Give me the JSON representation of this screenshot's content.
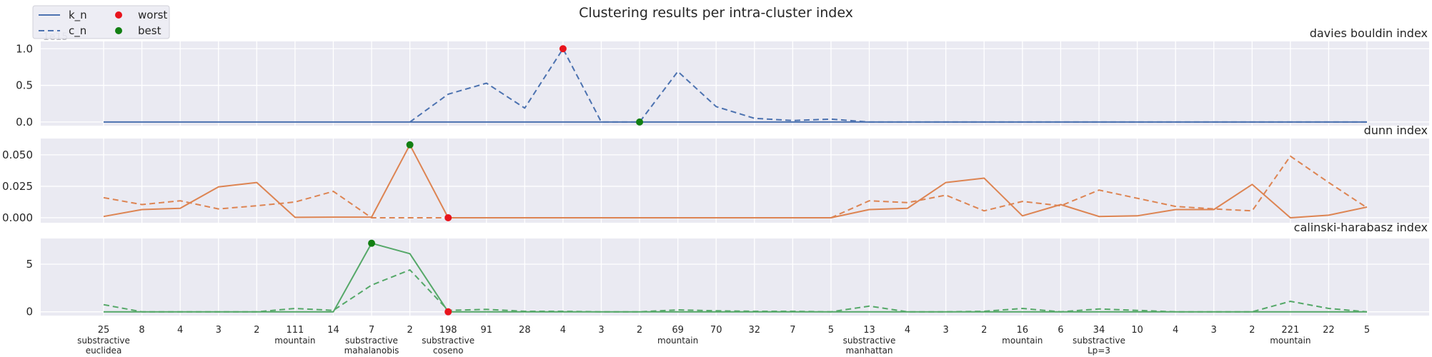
{
  "figure": {
    "title": "Clustering results per intra-cluster index",
    "legend": {
      "placement": "top-left",
      "entries": [
        {
          "key": "k_n",
          "label": "k_n",
          "kind": "solid-line"
        },
        {
          "key": "c_n",
          "label": "c_n",
          "kind": "dashed-line"
        },
        {
          "key": "worst",
          "label": "worst",
          "kind": "marker",
          "color": "#e8141c"
        },
        {
          "key": "best",
          "label": "best",
          "kind": "marker",
          "color": "#127f12"
        }
      ]
    }
  },
  "colors": {
    "background": "#eaeaf2",
    "grid": "#ffffff",
    "worst": "#e8141c",
    "best": "#127f12"
  },
  "chart_data": [
    {
      "type": "line",
      "title": "davies bouldin index",
      "offset_text": "1e15",
      "color": "#4c72b0",
      "ylim": [
        -0.05,
        1.1
      ],
      "yticks": [
        0.0,
        0.5,
        1.0
      ],
      "ytick_labels": [
        "0.0",
        "0.5",
        "1.0"
      ],
      "grid": true,
      "x": [
        0,
        1,
        2,
        3,
        4,
        5,
        6,
        7,
        8,
        9,
        10,
        11,
        12,
        13,
        14,
        15,
        16,
        17,
        18,
        19,
        20,
        21,
        22,
        23,
        24,
        25,
        26,
        27,
        28,
        29,
        30,
        31,
        32,
        33
      ],
      "series": [
        {
          "name": "k_n",
          "style": "solid",
          "values": [
            0,
            0,
            0,
            0,
            0,
            0,
            0,
            0,
            0,
            0,
            0,
            0,
            0,
            0,
            0,
            0,
            0,
            0,
            0,
            0,
            0,
            0,
            0,
            0,
            0,
            0,
            0,
            0,
            0,
            0,
            0,
            0,
            0,
            0
          ]
        },
        {
          "name": "c_n",
          "style": "dashed",
          "values": [
            null,
            null,
            null,
            null,
            null,
            null,
            null,
            null,
            0,
            0.38,
            0.53,
            0.19,
            1.0,
            0,
            0,
            0.69,
            0.21,
            0.05,
            0.02,
            0.04,
            0,
            0,
            0,
            0,
            0,
            0,
            0,
            0,
            0,
            0,
            0,
            0,
            0,
            0
          ]
        }
      ],
      "worst": {
        "x": 12,
        "y": 1.0
      },
      "best": {
        "x": 14,
        "y": 0.0
      }
    },
    {
      "type": "line",
      "title": "dunn index",
      "color": "#dd8452",
      "ylim": [
        -0.004,
        0.063
      ],
      "yticks": [
        0.0,
        0.025,
        0.05
      ],
      "ytick_labels": [
        "0.000",
        "0.025",
        "0.050"
      ],
      "grid": true,
      "x": [
        0,
        1,
        2,
        3,
        4,
        5,
        6,
        7,
        8,
        9,
        10,
        11,
        12,
        13,
        14,
        15,
        16,
        17,
        18,
        19,
        20,
        21,
        22,
        23,
        24,
        25,
        26,
        27,
        28,
        29,
        30,
        31,
        32,
        33
      ],
      "series": [
        {
          "name": "k_n",
          "style": "solid",
          "values": [
            0.001,
            0.0065,
            0.0075,
            0.0245,
            0.028,
            0.0003,
            0.0005,
            0.0005,
            0.058,
            0,
            0,
            0,
            0,
            0,
            0,
            0,
            0,
            0,
            0,
            0,
            0.0065,
            0.0075,
            0.028,
            0.0315,
            0.0015,
            0.0105,
            0.001,
            0.0015,
            0.0065,
            0.0065,
            0.0265,
            0,
            0.002,
            0.0085
          ]
        },
        {
          "name": "c_n",
          "style": "dashed",
          "values": [
            0.016,
            0.0105,
            0.0135,
            0.007,
            0.0095,
            0.0125,
            0.021,
            0,
            0,
            0,
            null,
            null,
            null,
            null,
            null,
            null,
            null,
            null,
            null,
            0,
            0.0135,
            0.012,
            0.018,
            0.0055,
            0.013,
            0.0095,
            0.022,
            0.0155,
            0.009,
            0.007,
            0.0055,
            0.049,
            0.028,
            0.008
          ]
        }
      ],
      "worst": {
        "x": 9,
        "y": 0.0
      },
      "best": {
        "x": 8,
        "y": 0.058
      }
    },
    {
      "type": "line",
      "title": "calinski-harabasz index",
      "color": "#55a868",
      "ylim": [
        -0.4,
        7.7
      ],
      "yticks": [
        0,
        5
      ],
      "ytick_labels": [
        "0",
        "5"
      ],
      "grid": true,
      "x": [
        0,
        1,
        2,
        3,
        4,
        5,
        6,
        7,
        8,
        9,
        10,
        11,
        12,
        13,
        14,
        15,
        16,
        17,
        18,
        19,
        20,
        21,
        22,
        23,
        24,
        25,
        26,
        27,
        28,
        29,
        30,
        31,
        32,
        33
      ],
      "series": [
        {
          "name": "k_n",
          "style": "solid",
          "values": [
            0,
            0,
            0,
            0,
            0,
            0,
            0,
            7.2,
            6.1,
            0,
            0,
            0,
            0,
            0,
            0,
            0,
            0,
            0,
            0,
            0,
            0,
            0,
            0,
            0,
            0,
            0,
            0,
            0,
            0,
            0,
            0,
            0,
            0,
            0
          ]
        },
        {
          "name": "c_n",
          "style": "dashed",
          "values": [
            0.75,
            0,
            0,
            0,
            0,
            0.35,
            0.15,
            2.8,
            4.4,
            0.15,
            0.25,
            0.05,
            0.05,
            0,
            0,
            0.2,
            0.1,
            0.05,
            0.05,
            0,
            0.6,
            0,
            0,
            0.05,
            0.35,
            0,
            0.3,
            0.15,
            0,
            0,
            0,
            1.1,
            0.35,
            0
          ]
        }
      ],
      "worst": {
        "x": 9,
        "y": 0.0
      },
      "best": {
        "x": 7,
        "y": 7.2
      }
    }
  ],
  "x_axis": {
    "ticks": [
      {
        "label": "25",
        "group": "substractive\neuclidea"
      },
      {
        "label": "8",
        "group": ""
      },
      {
        "label": "4",
        "group": ""
      },
      {
        "label": "3",
        "group": ""
      },
      {
        "label": "2",
        "group": ""
      },
      {
        "label": "111",
        "group": "mountain"
      },
      {
        "label": "14",
        "group": ""
      },
      {
        "label": "7",
        "group": "substractive\nmahalanobis"
      },
      {
        "label": "2",
        "group": ""
      },
      {
        "label": "198",
        "group": "substractive\ncoseno"
      },
      {
        "label": "91",
        "group": ""
      },
      {
        "label": "28",
        "group": ""
      },
      {
        "label": "4",
        "group": ""
      },
      {
        "label": "3",
        "group": ""
      },
      {
        "label": "2",
        "group": ""
      },
      {
        "label": "69",
        "group": "mountain"
      },
      {
        "label": "70",
        "group": ""
      },
      {
        "label": "32",
        "group": ""
      },
      {
        "label": "7",
        "group": ""
      },
      {
        "label": "5",
        "group": ""
      },
      {
        "label": "13",
        "group": "substractive\nmanhattan"
      },
      {
        "label": "4",
        "group": ""
      },
      {
        "label": "3",
        "group": ""
      },
      {
        "label": "2",
        "group": ""
      },
      {
        "label": "16",
        "group": "mountain"
      },
      {
        "label": "6",
        "group": ""
      },
      {
        "label": "34",
        "group": "substractive\nLp=3"
      },
      {
        "label": "10",
        "group": ""
      },
      {
        "label": "4",
        "group": ""
      },
      {
        "label": "3",
        "group": ""
      },
      {
        "label": "2",
        "group": ""
      },
      {
        "label": "221",
        "group": "mountain"
      },
      {
        "label": "22",
        "group": ""
      },
      {
        "label": "5",
        "group": ""
      }
    ]
  }
}
